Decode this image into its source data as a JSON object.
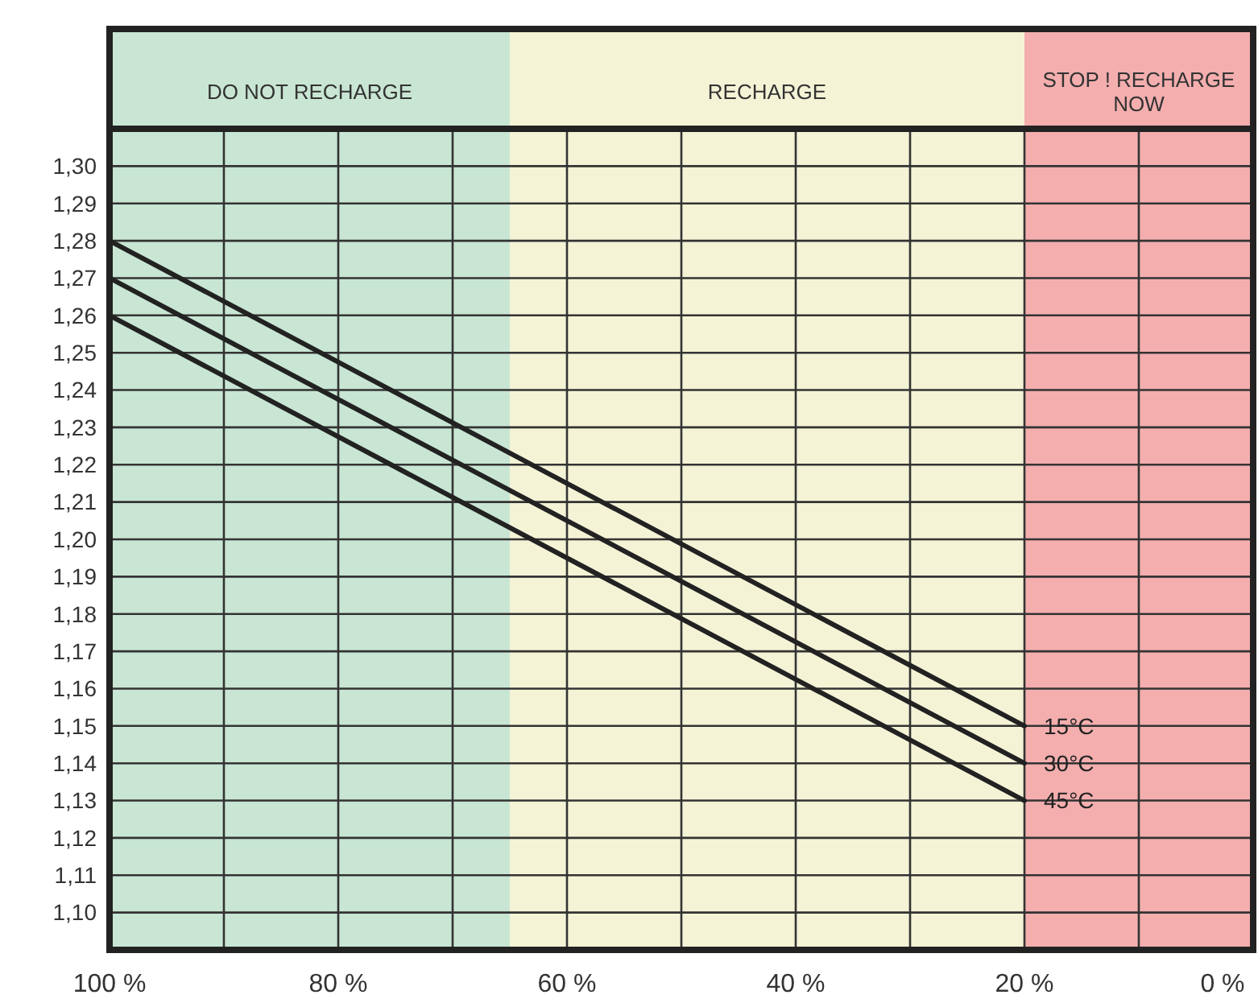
{
  "chart_data": {
    "type": "line",
    "x": [
      100,
      20
    ],
    "xlim": [
      100,
      0
    ],
    "xticks": [
      {
        "value": 100,
        "label": "100 %"
      },
      {
        "value": 90,
        "label": null
      },
      {
        "value": 80,
        "label": "80 %"
      },
      {
        "value": 70,
        "label": null
      },
      {
        "value": 60,
        "label": "60 %"
      },
      {
        "value": 50,
        "label": null
      },
      {
        "value": 40,
        "label": "40 %"
      },
      {
        "value": 30,
        "label": null
      },
      {
        "value": 20,
        "label": "20 %"
      },
      {
        "value": 10,
        "label": null
      },
      {
        "value": 0,
        "label": "0 %"
      }
    ],
    "ylim": [
      1.09,
      1.31
    ],
    "yticks": [
      {
        "value": 1.1,
        "label": "1,10"
      },
      {
        "value": 1.11,
        "label": "1,11"
      },
      {
        "value": 1.12,
        "label": "1,12"
      },
      {
        "value": 1.13,
        "label": "1,13"
      },
      {
        "value": 1.14,
        "label": "1,14"
      },
      {
        "value": 1.15,
        "label": "1,15"
      },
      {
        "value": 1.16,
        "label": "1,16"
      },
      {
        "value": 1.17,
        "label": "1,17"
      },
      {
        "value": 1.18,
        "label": "1,18"
      },
      {
        "value": 1.19,
        "label": "1,19"
      },
      {
        "value": 1.2,
        "label": "1,20"
      },
      {
        "value": 1.21,
        "label": "1,21"
      },
      {
        "value": 1.22,
        "label": "1,22"
      },
      {
        "value": 1.23,
        "label": "1,23"
      },
      {
        "value": 1.24,
        "label": "1,24"
      },
      {
        "value": 1.25,
        "label": "1,25"
      },
      {
        "value": 1.26,
        "label": "1,26"
      },
      {
        "value": 1.27,
        "label": "1,27"
      },
      {
        "value": 1.28,
        "label": "1,28"
      },
      {
        "value": 1.29,
        "label": "1,29"
      },
      {
        "value": 1.3,
        "label": "1,30"
      }
    ],
    "series": [
      {
        "name": "15°C",
        "color": "#222222",
        "values": [
          1.28,
          1.15
        ]
      },
      {
        "name": "30°C",
        "color": "#222222",
        "values": [
          1.27,
          1.14
        ]
      },
      {
        "name": "45°C",
        "color": "#222222",
        "values": [
          1.26,
          1.13
        ]
      }
    ],
    "bands": [
      {
        "axis": "x",
        "from": 100,
        "to": 65,
        "label": "DO NOT RECHARGE",
        "color": "#c8e6d3"
      },
      {
        "axis": "x",
        "from": 65,
        "to": 20,
        "label": "RECHARGE",
        "color": "#f4f3d6"
      },
      {
        "axis": "x",
        "from": 20,
        "to": 0,
        "label": "STOP ! RECHARGE NOW",
        "color": "#f4aeae"
      }
    ],
    "grid": true,
    "legend": false,
    "marker": "none",
    "line_style": "solid"
  }
}
